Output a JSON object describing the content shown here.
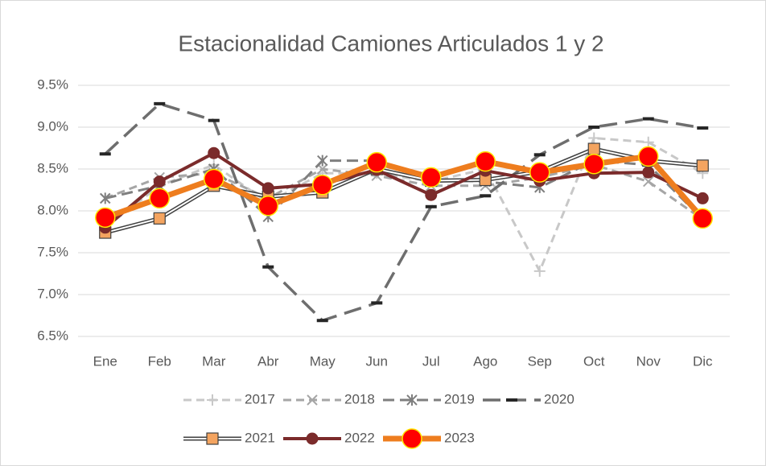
{
  "chart_data": {
    "type": "line",
    "title": "Estacionalidad Camiones Articulados 1 y 2",
    "categories": [
      "Ene",
      "Feb",
      "Mar",
      "Abr",
      "May",
      "Jun",
      "Jul",
      "Ago",
      "Sep",
      "Oct",
      "Nov",
      "Dic"
    ],
    "ylim": [
      6.5,
      9.5
    ],
    "yticks": [
      {
        "value": 6.5,
        "label": "6.5%"
      },
      {
        "value": 7.0,
        "label": "7.0%"
      },
      {
        "value": 7.5,
        "label": "7.5%"
      },
      {
        "value": 8.0,
        "label": "8.0%"
      },
      {
        "value": 8.5,
        "label": "8.5%"
      },
      {
        "value": 9.0,
        "label": "9.0%"
      },
      {
        "value": 9.5,
        "label": "9.5%"
      }
    ],
    "grid": true,
    "legend": "bottom",
    "series": [
      {
        "name": "2017",
        "color": "#c8c8c8",
        "dash": "10 6",
        "width": 3,
        "marker": "plus",
        "values": [
          7.8,
          8.3,
          8.55,
          8.1,
          8.45,
          8.45,
          8.35,
          8.5,
          7.28,
          8.87,
          8.82,
          8.45
        ]
      },
      {
        "name": "2018",
        "color": "#a6a6a6",
        "dash": "10 6",
        "width": 3,
        "marker": "x",
        "values": [
          8.15,
          8.4,
          8.45,
          8.15,
          8.5,
          8.42,
          8.3,
          8.3,
          8.4,
          8.55,
          8.35,
          7.9
        ]
      },
      {
        "name": "2019",
        "color": "#7f7f7f",
        "dash": "14 7",
        "width": 3,
        "marker": "star",
        "values": [
          8.15,
          8.3,
          8.5,
          7.93,
          8.6,
          8.6,
          8.38,
          8.35,
          8.28,
          8.6,
          8.55,
          7.9
        ]
      },
      {
        "name": "2020",
        "color": "#6e6e6e",
        "dash": "22 10",
        "width": 3.5,
        "marker": "dash",
        "values": [
          8.68,
          9.28,
          9.08,
          7.33,
          6.69,
          6.9,
          8.05,
          8.18,
          8.67,
          9.0,
          9.1,
          8.99
        ]
      },
      {
        "name": "2021",
        "color": "#ffffff",
        "outline": "#404040",
        "width": 2,
        "marker": "square",
        "marker_color": "#f4a460",
        "values": [
          7.74,
          7.91,
          8.3,
          8.17,
          8.22,
          8.5,
          8.36,
          8.37,
          8.47,
          8.74,
          8.6,
          8.54
        ]
      },
      {
        "name": "2022",
        "color": "#7b2b2b",
        "width": 4,
        "marker": "circle",
        "marker_color": "#7b2b2b",
        "values": [
          7.8,
          8.35,
          8.69,
          8.27,
          8.32,
          8.49,
          8.19,
          8.48,
          8.36,
          8.45,
          8.46,
          8.15
        ]
      },
      {
        "name": "2023",
        "color": "#ee7d1e",
        "width": 7,
        "marker": "bigcircle",
        "marker_color": "#ff0000",
        "values": [
          7.92,
          8.15,
          8.38,
          8.06,
          8.31,
          8.58,
          8.4,
          8.59,
          8.46,
          8.56,
          8.65,
          7.91
        ]
      }
    ]
  }
}
